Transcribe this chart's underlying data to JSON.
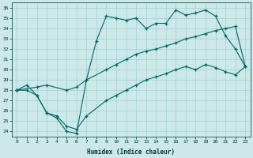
{
  "xlabel": "Humidex (Indice chaleur)",
  "bg_color": "#cce8e8",
  "line_color": "#006666",
  "xlim": [
    -0.5,
    23.5
  ],
  "ylim": [
    23.5,
    36.5
  ],
  "yticks": [
    24,
    25,
    26,
    27,
    28,
    29,
    30,
    31,
    32,
    33,
    34,
    35,
    36
  ],
  "xticks": [
    0,
    1,
    2,
    3,
    4,
    5,
    6,
    7,
    8,
    9,
    10,
    11,
    12,
    13,
    14,
    15,
    16,
    17,
    18,
    19,
    20,
    21,
    22,
    23
  ],
  "line1_x": [
    0,
    1,
    2,
    3,
    4,
    5,
    6,
    7,
    8,
    9,
    10,
    11,
    12,
    13,
    14,
    15,
    16,
    17,
    18,
    19,
    20,
    21,
    22,
    23
  ],
  "line1_y": [
    28,
    28.5,
    27.5,
    25.8,
    25.3,
    24.0,
    23.8,
    29.0,
    32.8,
    35.2,
    35.0,
    34.8,
    35.0,
    34.0,
    34.5,
    34.5,
    35.8,
    35.3,
    35.5,
    35.8,
    35.2,
    33.3,
    32.0,
    30.3
  ],
  "line2_x": [
    0,
    2,
    3,
    5,
    6,
    7,
    9,
    10,
    11,
    12,
    13,
    14,
    15,
    16,
    17,
    18,
    19,
    20,
    21,
    22,
    23
  ],
  "line2_y": [
    28,
    28.3,
    28.5,
    28.0,
    28.3,
    29.0,
    30.0,
    30.5,
    31.0,
    31.5,
    31.8,
    32.0,
    32.3,
    32.6,
    33.0,
    33.2,
    33.5,
    33.8,
    34.0,
    34.2,
    30.3
  ],
  "line3_x": [
    0,
    1,
    2,
    3,
    4,
    5,
    6,
    7,
    9,
    10,
    11,
    12,
    13,
    14,
    15,
    16,
    17,
    18,
    19,
    20,
    21,
    22,
    23
  ],
  "line3_y": [
    28.0,
    28.0,
    27.5,
    25.8,
    25.5,
    24.5,
    24.2,
    25.5,
    27.0,
    27.5,
    28.0,
    28.5,
    29.0,
    29.3,
    29.6,
    30.0,
    30.3,
    30.0,
    30.5,
    30.2,
    29.8,
    29.5,
    30.3
  ]
}
